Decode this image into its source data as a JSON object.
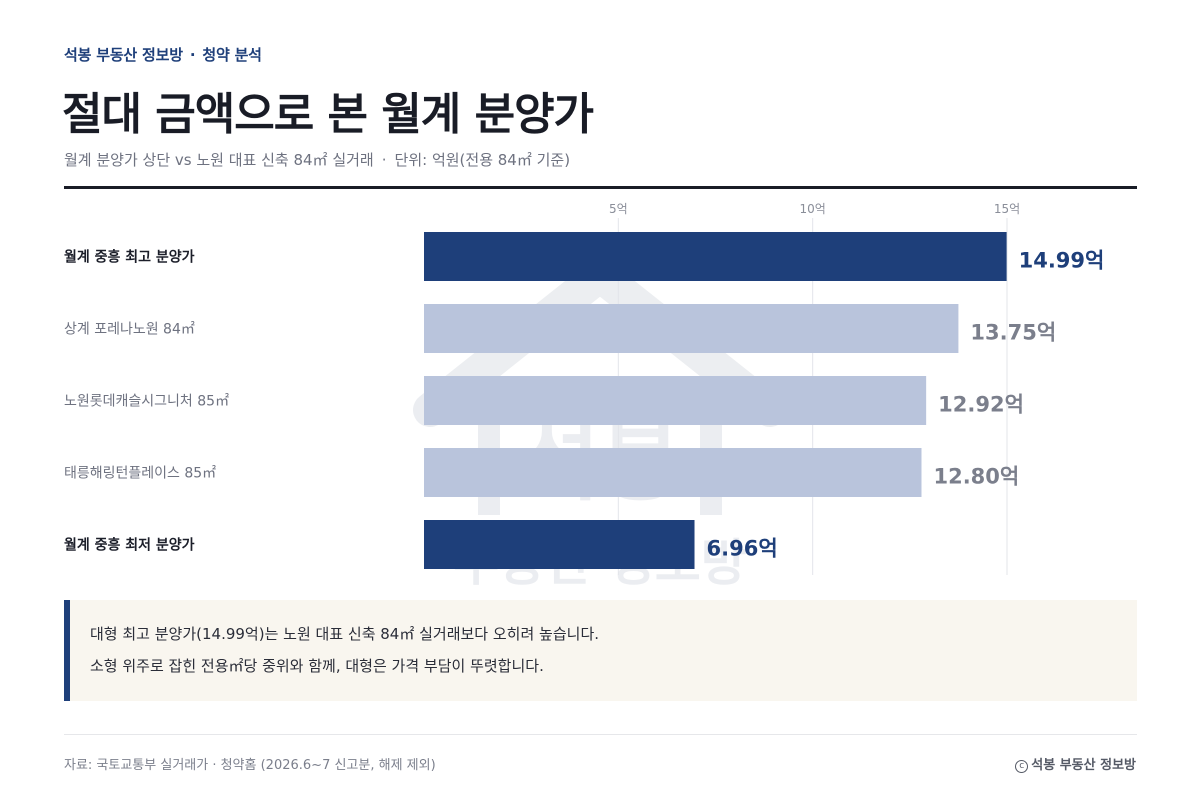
{
  "header": {
    "brand": "석봉 부동산 정보방",
    "section": "청약 분석",
    "title": "절대 금액으로 본 월계 분양가",
    "subtitle_main": "월계 분양가 상단 vs 노원 대표 신축 84㎡ 실거래",
    "subtitle_unit": "단위: 억원(전용 84㎡ 기준)"
  },
  "chart_data": {
    "type": "bar",
    "orientation": "horizontal",
    "unit": "억",
    "xlim": [
      0,
      18
    ],
    "ticks": [
      5,
      10,
      15
    ],
    "tick_labels": [
      "5억",
      "10억",
      "15억"
    ],
    "grid": true,
    "categories": [
      "월계 중흥 최고 분양가",
      "상계 포레나노원 84㎡",
      "노원롯데캐슬시그니처 85㎡",
      "태릉해링턴플레이스 85㎡",
      "월계 중흥 최저 분양가"
    ],
    "values": [
      14.99,
      13.75,
      12.92,
      12.8,
      6.96
    ],
    "value_labels": [
      "14.99억",
      "13.75억",
      "12.92억",
      "12.80억",
      "6.96억"
    ],
    "highlighted": [
      true,
      false,
      false,
      false,
      true
    ]
  },
  "colors": {
    "highlight_bar": "#1e3f7a",
    "muted_bar": "#b9c4dc",
    "highlight_text": "#1e3f7a",
    "muted_text": "#7b7f8c",
    "grid": "#e3e5ea"
  },
  "note": {
    "line1": "대형 최고 분양가(14.99억)는 노원 대표 신축 84㎡ 실거래보다 오히려 높습니다.",
    "line2": "소형 위주로 잡힌 전용㎡당 중위와 함께, 대형은 가격 부담이 뚜렷합니다."
  },
  "footer": {
    "source": "자료: 국토교통부 실거래가 · 청약홈 (2026.6~7 신고분, 해제 제외)",
    "copyright": "석봉 부동산 정보방"
  },
  "watermark": {
    "text_top": "석봉",
    "text_bottom": "부동산 정보방"
  }
}
